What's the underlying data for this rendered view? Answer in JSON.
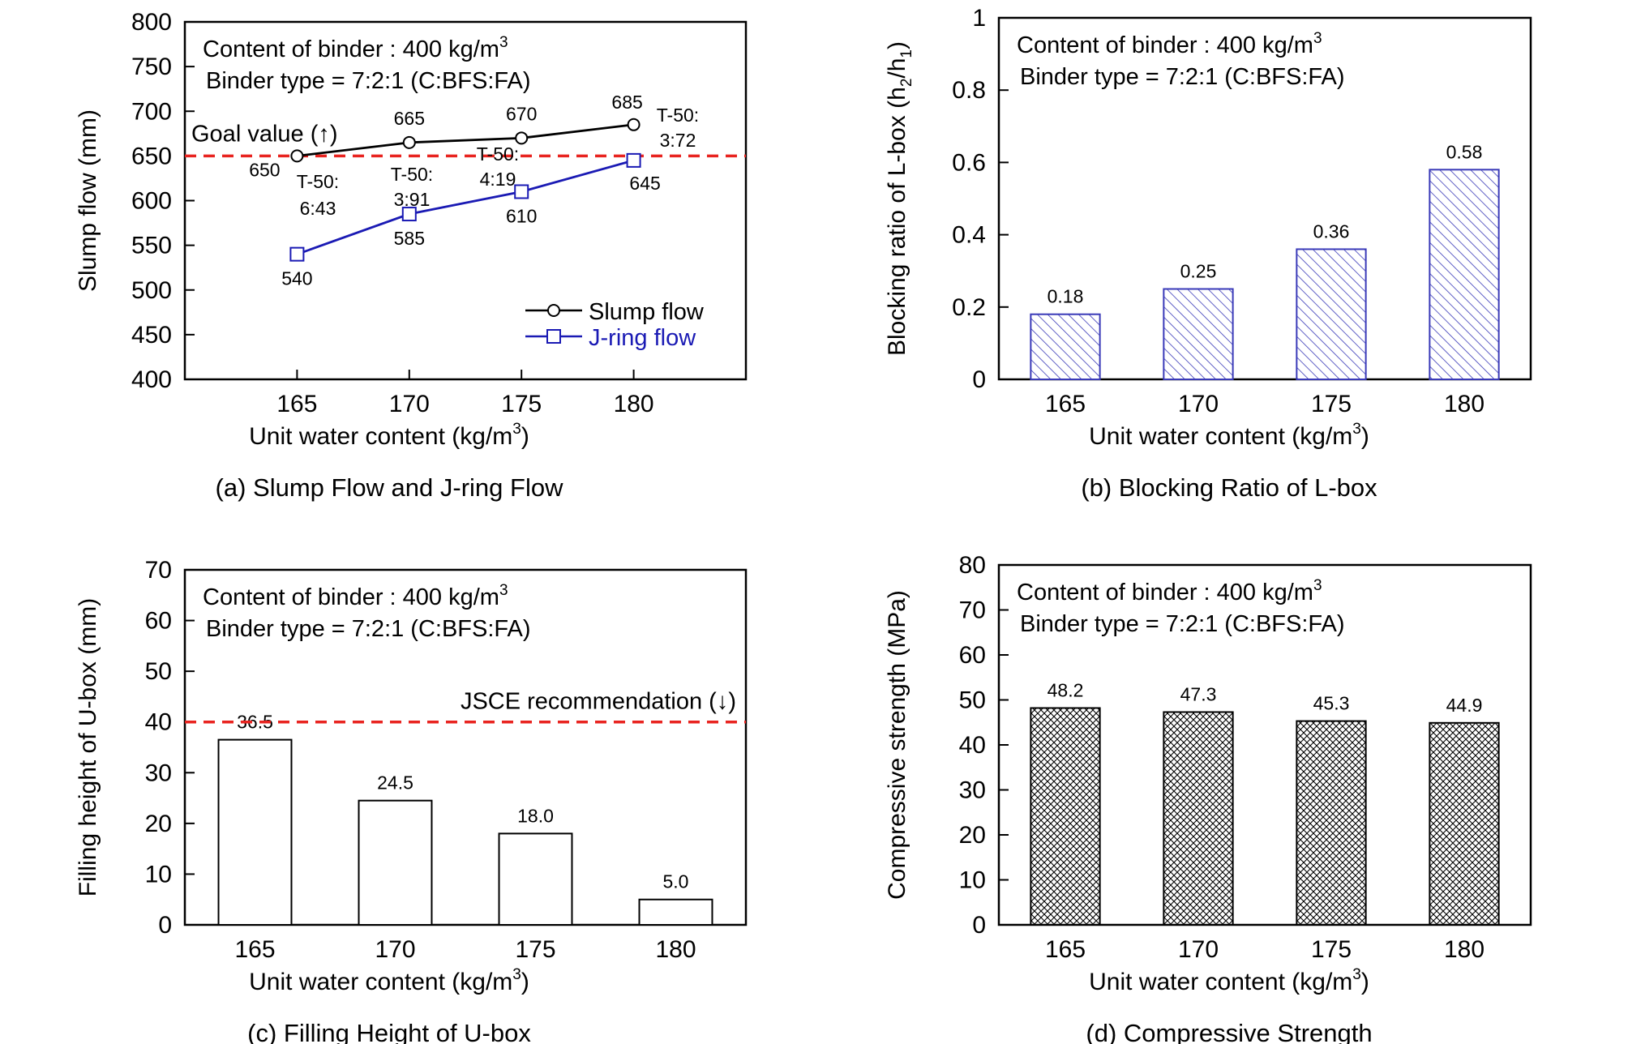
{
  "chart_data": [
    {
      "type": "line",
      "caption": "(a) Slump Flow and J-ring Flow",
      "xlabel": "Unit water content (kg/m",
      "xlabel_sup": "3",
      "xlabel_close": ")",
      "ylabel": "Slump flow (mm)",
      "x": [
        165,
        170,
        175,
        180
      ],
      "xlim": [
        160,
        185
      ],
      "ylim": [
        400,
        800
      ],
      "yticks": [
        400,
        450,
        500,
        550,
        600,
        650,
        700,
        750,
        800
      ],
      "notes": [
        "Content of binder : 400 kg/m",
        "Binder type = 7:2:1 (C:BFS:FA)"
      ],
      "notes_sup": "3",
      "goal_value": 650,
      "goal_label": "Goal value (↑)",
      "series": [
        {
          "name": "Slump flow",
          "values": [
            650,
            665,
            670,
            685
          ],
          "labels": [
            "650",
            "665",
            "670",
            "685"
          ],
          "color": "#000000",
          "marker": "circle"
        },
        {
          "name": "J-ring flow",
          "values": [
            540,
            585,
            610,
            645
          ],
          "labels": [
            "540",
            "585",
            "610",
            "645"
          ],
          "color": "#1a1ab4",
          "marker": "square"
        }
      ],
      "t50": [
        {
          "line1": "T-50:",
          "line2": "6:43"
        },
        {
          "line1": "T-50:",
          "line2": "3:91"
        },
        {
          "line1": "T-50:",
          "line2": "4:19"
        },
        {
          "line1": "T-50:",
          "line2": "3:72"
        }
      ]
    },
    {
      "type": "bar",
      "caption": "(b) Blocking Ratio of L-box",
      "xlabel": "Unit water content (kg/m",
      "xlabel_sup": "3",
      "xlabel_close": ")",
      "ylabel": "Blocking ratio of L-box (h",
      "ylabel_sub1": "2",
      "ylabel_mid": "/h",
      "ylabel_sub2": "1",
      "ylabel_close": ")",
      "categories": [
        "165",
        "170",
        "175",
        "180"
      ],
      "values": [
        0.18,
        0.25,
        0.36,
        0.58
      ],
      "labels": [
        "0.18",
        "0.25",
        "0.36",
        "0.58"
      ],
      "ylim": [
        0,
        1
      ],
      "yticks": [
        0,
        0.2,
        0.4,
        0.6,
        0.8,
        1
      ],
      "ytick_labels": [
        "0",
        "0.2",
        "0.4",
        "0.6",
        "0.8",
        "1"
      ],
      "fill": "diagonal-hatch",
      "color": "#3a3ab8",
      "notes": [
        "Content of binder : 400 kg/m",
        "Binder type = 7:2:1 (C:BFS:FA)"
      ],
      "notes_sup": "3"
    },
    {
      "type": "bar",
      "caption": "(c) Filling Height of U-box",
      "xlabel": "Unit water content (kg/m",
      "xlabel_sup": "3",
      "xlabel_close": ")",
      "ylabel": "Filling height of U-box (mm)",
      "categories": [
        "165",
        "170",
        "175",
        "180"
      ],
      "values": [
        36.5,
        24.5,
        18.0,
        5.0
      ],
      "labels": [
        "36.5",
        "24.5",
        "18.0",
        "5.0"
      ],
      "ylim": [
        0,
        70
      ],
      "yticks": [
        0,
        10,
        20,
        30,
        40,
        50,
        60,
        70
      ],
      "fill": "none",
      "notes": [
        "Content of binder : 400 kg/m",
        "Binder type = 7:2:1 (C:BFS:FA)"
      ],
      "notes_sup": "3",
      "recommendation": 40,
      "recommendation_label": "JSCE recommendation (↓)"
    },
    {
      "type": "bar",
      "caption": "(d) Compressive Strength",
      "xlabel": "Unit water content (kg/m",
      "xlabel_sup": "3",
      "xlabel_close": ")",
      "ylabel": "Compressive strength (MPa)",
      "categories": [
        "165",
        "170",
        "175",
        "180"
      ],
      "values": [
        48.2,
        47.3,
        45.3,
        44.9
      ],
      "labels": [
        "48.2",
        "47.3",
        "45.3",
        "44.9"
      ],
      "ylim": [
        0,
        80
      ],
      "yticks": [
        0,
        10,
        20,
        30,
        40,
        50,
        60,
        70,
        80
      ],
      "fill": "cross-hatch",
      "color": "#000000",
      "notes": [
        "Content of binder : 400 kg/m",
        "Binder type = 7:2:1 (C:BFS:FA)"
      ],
      "notes_sup": "3"
    }
  ],
  "colors": {
    "goal_line": "#e8231f",
    "axis": "#000000"
  }
}
